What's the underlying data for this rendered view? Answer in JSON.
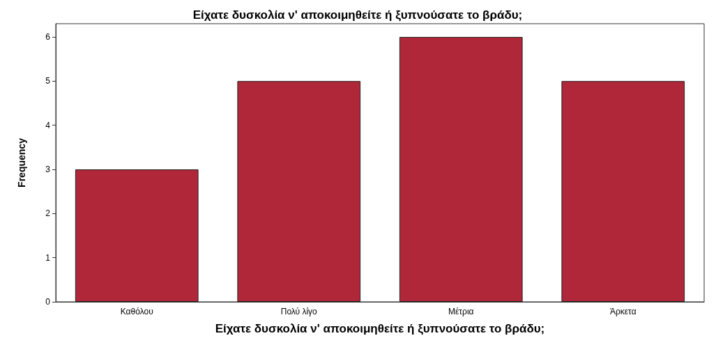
{
  "chart_data": {
    "type": "bar",
    "title": "Είχατε δυσκολία ν' αποκοιμηθείτε ή ξυπνούσατε το βράδυ;",
    "xlabel": "Είχατε δυσκολία ν' αποκοιμηθείτε ή ξυπνούσατε το βράδυ;",
    "ylabel": "Frequency",
    "categories": [
      "Καθόλου",
      "Πολύ λίγο",
      "Μέτρια",
      "Άρκετα"
    ],
    "values": [
      3,
      5,
      6,
      5
    ],
    "color": "#b0273a",
    "ylim": [
      0,
      6.3
    ],
    "yticks": [
      0,
      1,
      2,
      3,
      4,
      5,
      6
    ],
    "grid": false
  }
}
